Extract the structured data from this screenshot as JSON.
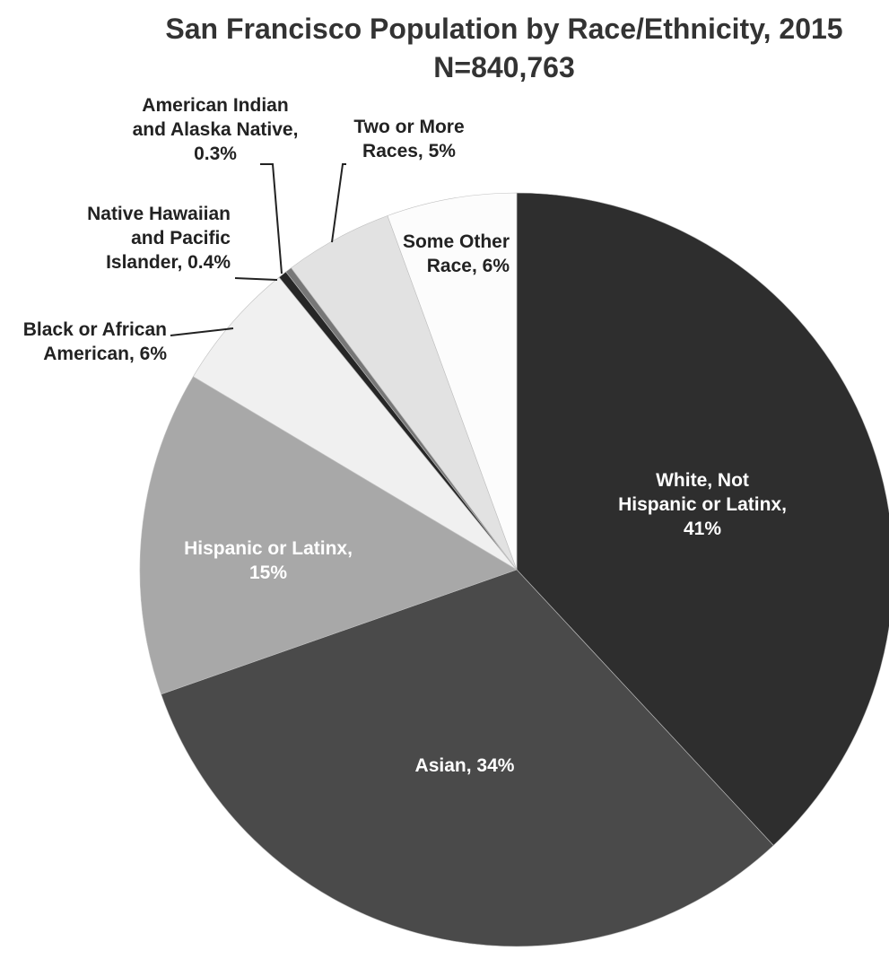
{
  "chart_data": {
    "type": "pie",
    "title": "San Francisco Population by Race/Ethnicity, 2015",
    "subtitle": "N=840,763",
    "unit": "%",
    "slices": [
      {
        "label": [
          "White, Not",
          "Hispanic or Latinx,",
          "41%"
        ],
        "value": 41.0,
        "color": "#2e2e2e",
        "label_color": "#ffffff"
      },
      {
        "label": [
          "Asian, 34%"
        ],
        "value": 34.0,
        "color": "#4a4a4a",
        "label_color": "#ffffff"
      },
      {
        "label": [
          "Hispanic or Latinx,",
          "15%"
        ],
        "value": 15.0,
        "color": "#a8a8a8",
        "label_color": "#ffffff"
      },
      {
        "label": [
          "Black or African",
          "American, 6%"
        ],
        "value": 6.0,
        "color": "#f0f0f0",
        "label_color": "#222222"
      },
      {
        "label": [
          "Native Hawaiian",
          "and Pacific",
          "Islander, 0.4%"
        ],
        "value": 0.4,
        "color": "#262626",
        "label_color": "#222222"
      },
      {
        "label": [
          "American Indian",
          "and Alaska Native,",
          "0.3%"
        ],
        "value": 0.3,
        "color": "#777777",
        "label_color": "#222222"
      },
      {
        "label": [
          "Two or More",
          "Races, 5%"
        ],
        "value": 5.0,
        "color": "#e2e2e2",
        "label_color": "#222222"
      },
      {
        "label": [
          "Some Other",
          "Race, 6%"
        ],
        "value": 6.0,
        "color": "#fcfcfc",
        "label_color": "#222222"
      }
    ]
  }
}
